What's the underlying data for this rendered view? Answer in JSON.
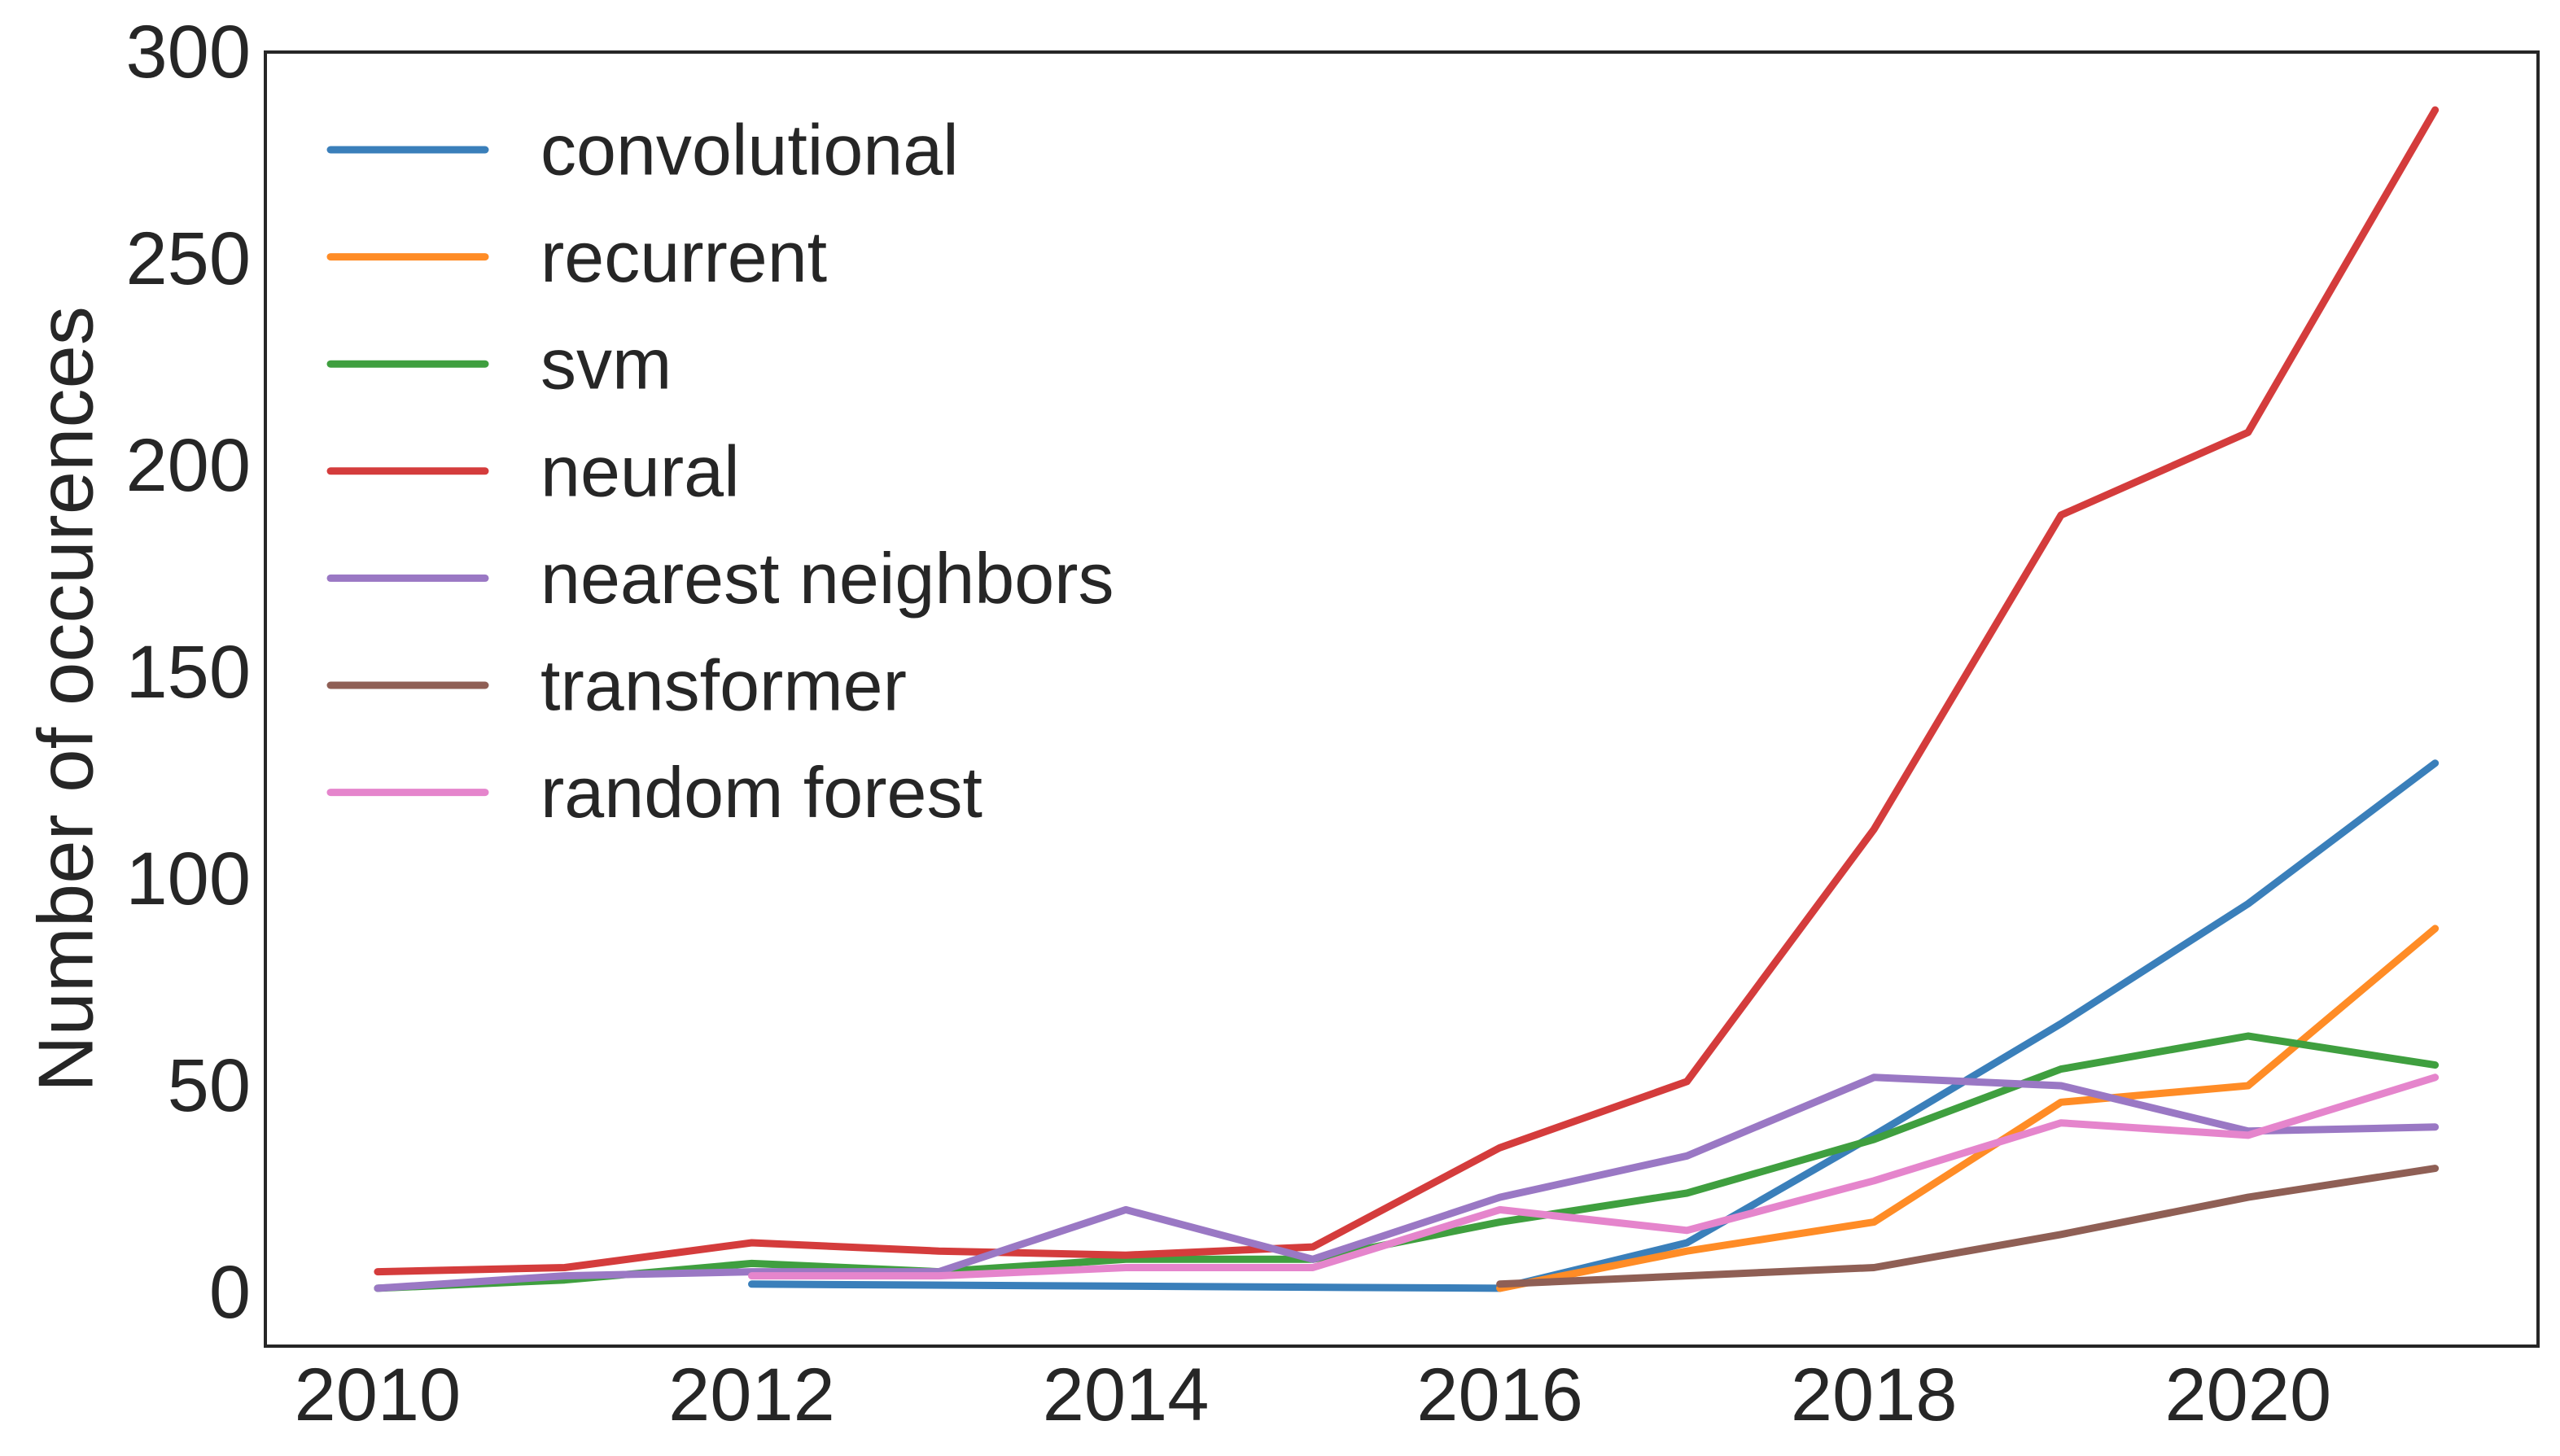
{
  "chart_data": {
    "type": "line",
    "ylabel": "Number of occurences",
    "xlim": [
      2009.4,
      2021.55
    ],
    "ylim": [
      -13,
      300
    ],
    "xticks": [
      2010,
      2012,
      2014,
      2016,
      2018,
      2020
    ],
    "yticks": [
      0,
      50,
      100,
      150,
      200,
      250,
      300
    ],
    "grid": false,
    "legend_position": "top-left",
    "series": [
      {
        "name": "convolutional",
        "color": "#3a7fba",
        "x": [
          2012,
          2016,
          2017,
          2018,
          2019,
          2020,
          2021
        ],
        "y": [
          2,
          1,
          12,
          38,
          65,
          94,
          128
        ]
      },
      {
        "name": "recurrent",
        "color": "#ff8c26",
        "x": [
          2016,
          2017,
          2018,
          2019,
          2020,
          2021
        ],
        "y": [
          1,
          10,
          17,
          46,
          50,
          88
        ]
      },
      {
        "name": "svm",
        "color": "#3f9f3f",
        "x": [
          2010,
          2011,
          2012,
          2013,
          2014,
          2015,
          2016,
          2017,
          2018,
          2019,
          2020,
          2021
        ],
        "y": [
          1,
          3,
          7,
          5,
          8,
          8,
          17,
          24,
          37,
          54,
          62,
          55
        ]
      },
      {
        "name": "neural",
        "color": "#d43c3c",
        "x": [
          2010,
          2011,
          2012,
          2013,
          2014,
          2015,
          2016,
          2017,
          2018,
          2019,
          2020,
          2021
        ],
        "y": [
          5,
          6,
          12,
          10,
          9,
          11,
          35,
          51,
          112,
          188,
          208,
          286
        ]
      },
      {
        "name": "nearest neighbors",
        "color": "#9a78c4",
        "x": [
          2010,
          2011,
          2012,
          2013,
          2014,
          2015,
          2016,
          2017,
          2018,
          2019,
          2020,
          2021
        ],
        "y": [
          1,
          4,
          5,
          5,
          20,
          8,
          23,
          33,
          52,
          50,
          39,
          40
        ]
      },
      {
        "name": "transformer",
        "color": "#8f5f55",
        "x": [
          2016,
          2017,
          2018,
          2019,
          2020,
          2021
        ],
        "y": [
          2,
          4,
          6,
          14,
          23,
          30
        ]
      },
      {
        "name": "random forest",
        "color": "#e585cc",
        "x": [
          2012,
          2013,
          2014,
          2015,
          2016,
          2017,
          2018,
          2019,
          2020,
          2021
        ],
        "y": [
          4,
          4,
          6,
          6,
          20,
          15,
          27,
          41,
          38,
          52
        ]
      }
    ]
  }
}
